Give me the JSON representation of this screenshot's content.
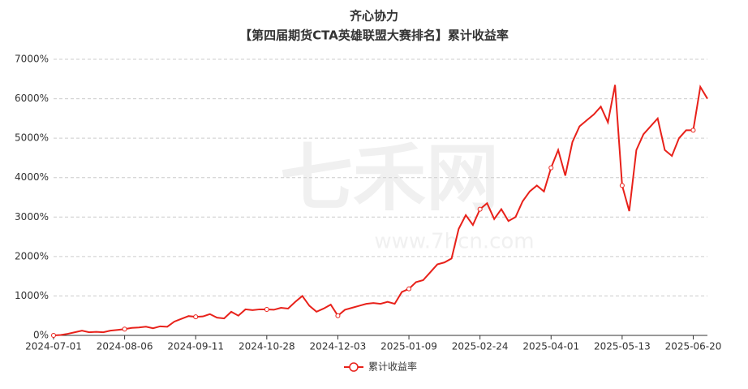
{
  "chart_data": {
    "type": "line",
    "title": "齐心协力",
    "subtitle": "【第四届期货CTA英雄联盟大赛排名】累计收益率",
    "watermark": "七禾网",
    "watermark_url": "www.7hcn.com",
    "categories": [
      "2024-07-01",
      null,
      null,
      null,
      null,
      null,
      null,
      null,
      null,
      null,
      "2024-08-06",
      null,
      null,
      null,
      null,
      null,
      null,
      null,
      null,
      null,
      "2024-09-11",
      null,
      null,
      null,
      null,
      null,
      null,
      null,
      null,
      null,
      "2024-10-28",
      null,
      null,
      null,
      null,
      null,
      null,
      null,
      null,
      null,
      "2024-12-03",
      null,
      null,
      null,
      null,
      null,
      null,
      null,
      null,
      null,
      "2025-01-09",
      null,
      null,
      null,
      null,
      null,
      null,
      null,
      null,
      null,
      "2025-02-24",
      null,
      null,
      null,
      null,
      null,
      null,
      null,
      null,
      null,
      "2025-04-01",
      null,
      null,
      null,
      null,
      null,
      null,
      null,
      null,
      null,
      "2025-05-13",
      null,
      null,
      null,
      null,
      null,
      null,
      null,
      null,
      null,
      "2025-06-20",
      null,
      null
    ],
    "series": [
      {
        "name": "累计收益率",
        "color": "#e8211a",
        "values": [
          0,
          10,
          40,
          80,
          120,
          80,
          90,
          80,
          120,
          140,
          160,
          190,
          200,
          220,
          180,
          230,
          220,
          350,
          420,
          490,
          470,
          480,
          540,
          450,
          430,
          600,
          500,
          660,
          640,
          660,
          660,
          650,
          700,
          680,
          850,
          1000,
          750,
          600,
          680,
          780,
          500,
          650,
          700,
          750,
          800,
          820,
          800,
          850,
          800,
          1100,
          1180,
          1350,
          1400,
          1600,
          1800,
          1850,
          1950,
          2700,
          3050,
          2800,
          3200,
          3350,
          2950,
          3200,
          2900,
          3000,
          3400,
          3650,
          3800,
          3650,
          4250,
          4700,
          4050,
          4900,
          5300,
          5450,
          5600,
          5800,
          5400,
          6350,
          3800,
          3150,
          4700,
          5100,
          5300,
          5500,
          4700,
          4550,
          5000,
          5200,
          5200,
          6300,
          6000
        ]
      }
    ],
    "ylim": [
      0,
      7000
    ],
    "yticks": [
      {
        "value": 0,
        "label": "0%"
      },
      {
        "value": 1000,
        "label": "1000%"
      },
      {
        "value": 2000,
        "label": "2000%"
      },
      {
        "value": 3000,
        "label": "3000%"
      },
      {
        "value": 4000,
        "label": "4000%"
      },
      {
        "value": 5000,
        "label": "5000%"
      },
      {
        "value": 6000,
        "label": "6000%"
      },
      {
        "value": 7000,
        "label": "7000%"
      }
    ],
    "grid": true,
    "legend": "bottom"
  }
}
